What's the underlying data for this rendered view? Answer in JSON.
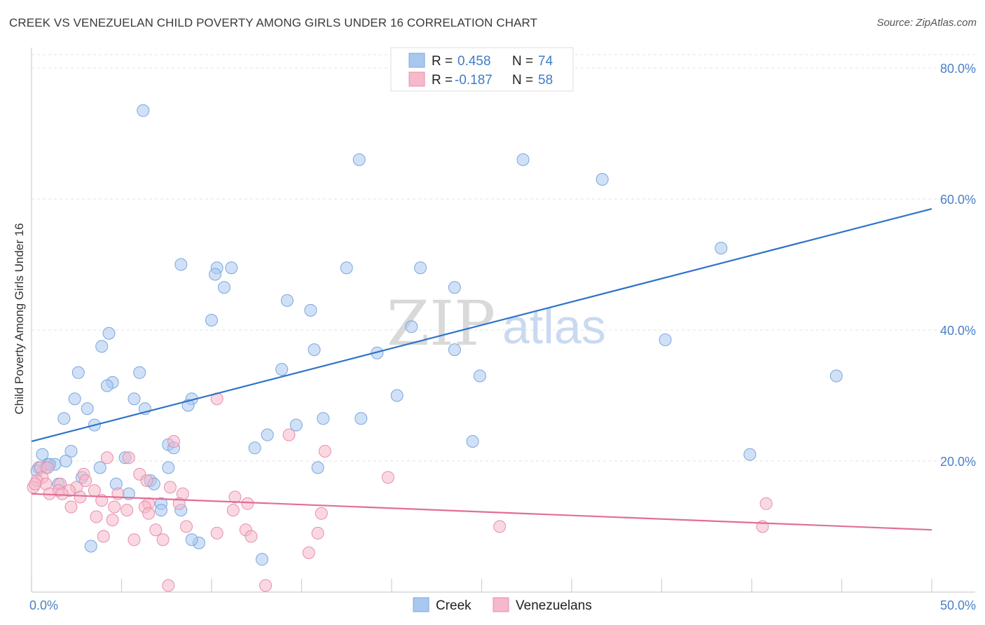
{
  "header": {
    "title": "CREEK VS VENEZUELAN CHILD POVERTY AMONG GIRLS UNDER 16 CORRELATION CHART",
    "source": "Source: ZipAtlas.com"
  },
  "watermark": {
    "part1": "ZIP",
    "part2": "atlas"
  },
  "legend_top": [
    {
      "r_label": "R =",
      "r_value": "0.458",
      "n_label": "N =",
      "n_value": "74",
      "color": "#a9c8f0"
    },
    {
      "r_label": "R =",
      "r_value": "-0.187",
      "n_label": "N =",
      "n_value": "58",
      "color": "#f6b8cb"
    }
  ],
  "legend_bottom": [
    {
      "label": "Creek",
      "color": "#a9c8f0"
    },
    {
      "label": "Venezuelans",
      "color": "#f6b8cb"
    }
  ],
  "chart_data": {
    "type": "scatter",
    "title": "CREEK VS VENEZUELAN CHILD POVERTY AMONG GIRLS UNDER 16 CORRELATION CHART",
    "xlabel": "",
    "ylabel": "Child Poverty Among Girls Under 16",
    "xlim": [
      0,
      50
    ],
    "ylim": [
      0,
      80
    ],
    "x_tick_labels": [
      "0.0%",
      "50.0%"
    ],
    "y_ticks": [
      20,
      40,
      60,
      80
    ],
    "y_tick_labels": [
      "20.0%",
      "40.0%",
      "60.0%",
      "80.0%"
    ],
    "grid": true,
    "legend_position": "top-center",
    "series": [
      {
        "name": "Creek",
        "color": "#a9c8f0",
        "stroke": "#7aa6de",
        "trend": {
          "x": [
            0,
            50
          ],
          "y": [
            23.0,
            58.5
          ],
          "color": "#2f73c9"
        },
        "points": [
          [
            6.2,
            73.5
          ],
          [
            18.2,
            66.0
          ],
          [
            27.3,
            66.0
          ],
          [
            31.7,
            63.0
          ],
          [
            38.3,
            52.5
          ],
          [
            8.3,
            50.0
          ],
          [
            10.3,
            49.5
          ],
          [
            11.1,
            49.5
          ],
          [
            17.5,
            49.5
          ],
          [
            21.6,
            49.5
          ],
          [
            10.2,
            48.5
          ],
          [
            10.7,
            46.5
          ],
          [
            23.5,
            46.5
          ],
          [
            14.2,
            44.5
          ],
          [
            15.5,
            43.0
          ],
          [
            10.0,
            41.5
          ],
          [
            21.1,
            40.5
          ],
          [
            4.3,
            39.5
          ],
          [
            35.2,
            38.5
          ],
          [
            3.9,
            37.5
          ],
          [
            15.7,
            37.0
          ],
          [
            23.5,
            37.0
          ],
          [
            19.2,
            36.5
          ],
          [
            13.9,
            34.0
          ],
          [
            2.6,
            33.5
          ],
          [
            6.0,
            33.5
          ],
          [
            24.9,
            33.0
          ],
          [
            44.7,
            33.0
          ],
          [
            4.5,
            32.0
          ],
          [
            4.2,
            31.5
          ],
          [
            20.3,
            30.0
          ],
          [
            2.4,
            29.5
          ],
          [
            5.7,
            29.5
          ],
          [
            8.9,
            29.5
          ],
          [
            8.7,
            28.5
          ],
          [
            6.3,
            28.0
          ],
          [
            3.1,
            28.0
          ],
          [
            1.8,
            26.5
          ],
          [
            16.2,
            26.5
          ],
          [
            18.3,
            26.5
          ],
          [
            3.5,
            25.5
          ],
          [
            14.7,
            25.5
          ],
          [
            13.1,
            24.0
          ],
          [
            24.5,
            23.0
          ],
          [
            7.6,
            22.5
          ],
          [
            12.4,
            22.0
          ],
          [
            7.9,
            22.0
          ],
          [
            2.2,
            21.5
          ],
          [
            0.6,
            21.0
          ],
          [
            39.9,
            21.0
          ],
          [
            5.2,
            20.5
          ],
          [
            1.9,
            20.0
          ],
          [
            0.9,
            19.5
          ],
          [
            1.3,
            19.5
          ],
          [
            7.6,
            19.0
          ],
          [
            0.4,
            19.0
          ],
          [
            3.8,
            19.0
          ],
          [
            15.9,
            19.0
          ],
          [
            2.8,
            17.5
          ],
          [
            6.6,
            17.0
          ],
          [
            1.5,
            16.5
          ],
          [
            4.7,
            16.5
          ],
          [
            6.8,
            16.5
          ],
          [
            5.4,
            15.0
          ],
          [
            7.2,
            13.5
          ],
          [
            8.3,
            12.5
          ],
          [
            7.2,
            12.5
          ],
          [
            3.3,
            7.0
          ],
          [
            9.3,
            7.5
          ],
          [
            8.9,
            8.0
          ],
          [
            12.8,
            5.0
          ],
          [
            0.3,
            18.5
          ],
          [
            0.8,
            19.0
          ],
          [
            1.0,
            19.5
          ]
        ]
      },
      {
        "name": "Venezuelans",
        "color": "#f6b8cb",
        "stroke": "#e88eaa",
        "trend": {
          "x": [
            0,
            50
          ],
          "y": [
            15.0,
            9.5
          ],
          "color": "#e26e97"
        },
        "points": [
          [
            10.3,
            29.5
          ],
          [
            14.3,
            24.0
          ],
          [
            7.9,
            23.0
          ],
          [
            16.3,
            21.5
          ],
          [
            4.2,
            20.5
          ],
          [
            5.4,
            20.5
          ],
          [
            0.5,
            19.0
          ],
          [
            0.9,
            19.0
          ],
          [
            2.9,
            18.0
          ],
          [
            6.0,
            18.0
          ],
          [
            19.8,
            17.5
          ],
          [
            0.6,
            17.5
          ],
          [
            0.3,
            17.0
          ],
          [
            3.0,
            17.0
          ],
          [
            6.4,
            17.0
          ],
          [
            0.8,
            16.5
          ],
          [
            1.6,
            16.5
          ],
          [
            2.5,
            16.0
          ],
          [
            7.7,
            16.0
          ],
          [
            0.1,
            16.0
          ],
          [
            1.5,
            15.5
          ],
          [
            2.1,
            15.5
          ],
          [
            3.5,
            15.5
          ],
          [
            8.4,
            15.0
          ],
          [
            1.0,
            15.0
          ],
          [
            1.7,
            15.0
          ],
          [
            4.8,
            15.0
          ],
          [
            2.7,
            14.5
          ],
          [
            11.3,
            14.5
          ],
          [
            3.9,
            14.0
          ],
          [
            6.5,
            13.5
          ],
          [
            8.2,
            13.5
          ],
          [
            12.0,
            13.5
          ],
          [
            40.8,
            13.5
          ],
          [
            2.2,
            13.0
          ],
          [
            4.6,
            13.0
          ],
          [
            6.3,
            13.0
          ],
          [
            11.2,
            12.5
          ],
          [
            5.3,
            12.5
          ],
          [
            6.5,
            12.0
          ],
          [
            16.1,
            12.0
          ],
          [
            3.6,
            11.5
          ],
          [
            4.5,
            11.0
          ],
          [
            8.6,
            10.0
          ],
          [
            26.0,
            10.0
          ],
          [
            40.6,
            10.0
          ],
          [
            6.9,
            9.5
          ],
          [
            11.9,
            9.5
          ],
          [
            15.9,
            9.0
          ],
          [
            10.3,
            9.0
          ],
          [
            4.0,
            8.5
          ],
          [
            12.2,
            8.5
          ],
          [
            5.7,
            8.0
          ],
          [
            7.3,
            8.0
          ],
          [
            15.4,
            6.0
          ],
          [
            7.6,
            1.0
          ],
          [
            13.0,
            1.0
          ],
          [
            0.2,
            16.5
          ]
        ]
      }
    ]
  }
}
